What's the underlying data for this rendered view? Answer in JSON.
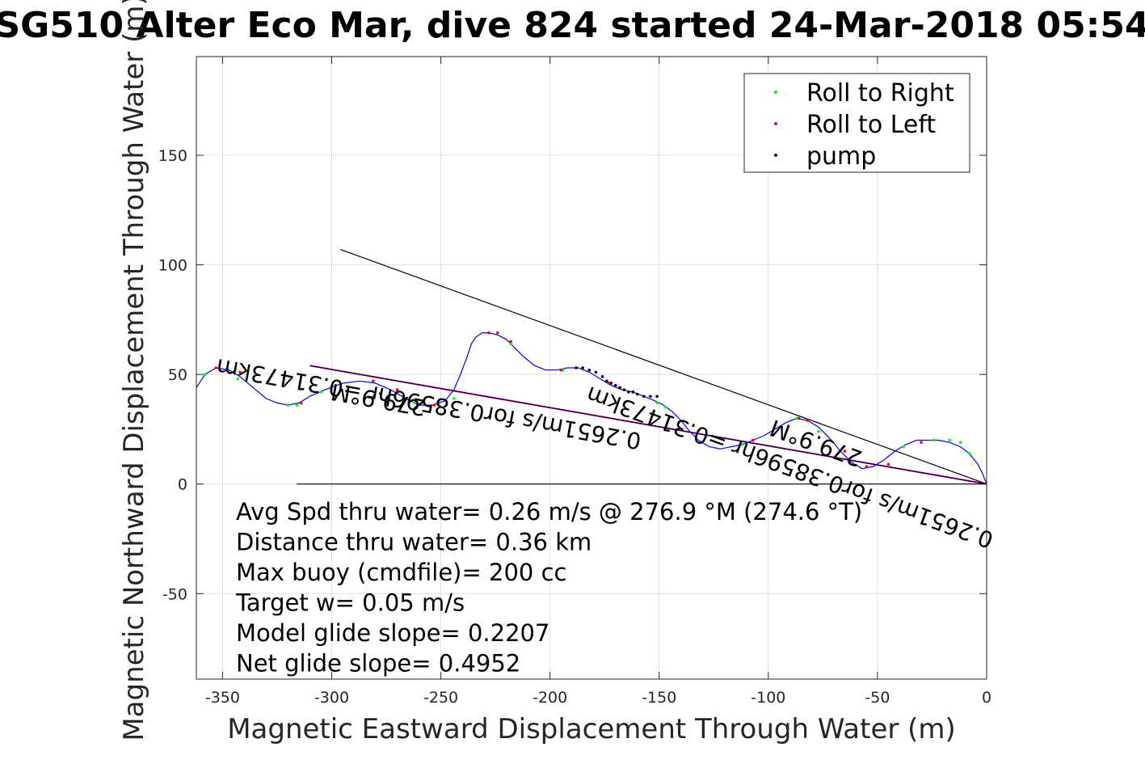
{
  "chart_data": {
    "type": "line",
    "title": "SG510 Alter Eco Mar, dive 824 started 24-Mar-2018 05:54",
    "xlabel": "Magnetic Eastward Displacement Through Water (m)",
    "ylabel": "Magnetic Northward Displacement Through Water (m)",
    "xlim": [
      -362,
      0
    ],
    "ylim": [
      -89,
      195
    ],
    "xticks": [
      -350,
      -300,
      -250,
      -200,
      -150,
      -100,
      -50,
      0
    ],
    "xtick_labels": [
      "-350",
      "-300",
      "-250",
      "-200",
      "-150",
      "-100",
      "-50",
      "0"
    ],
    "yticks": [
      -50,
      0,
      50,
      100,
      150
    ],
    "ytick_labels": [
      "-50",
      "0",
      "50",
      "100",
      "150"
    ],
    "grid": true,
    "legend_position": "top-right",
    "legend": [
      {
        "label": "Roll to Right",
        "color": "#00ff00"
      },
      {
        "label": "Roll to Left",
        "color": "#ff0000"
      },
      {
        "label": "pump",
        "color": "#000000"
      }
    ],
    "colors": {
      "track": "#0000ff",
      "mean_line": "#ff00ff",
      "reference_lines": "#000000"
    },
    "track": {
      "x": [
        -362,
        -358,
        -353,
        -347,
        -342,
        -336,
        -330,
        -325,
        -320,
        -315,
        -310,
        -303,
        -295,
        -287,
        -280,
        -273,
        -266,
        -260,
        -254,
        -248,
        -244,
        -241,
        -238,
        -236,
        -234,
        -231,
        -228,
        -224,
        -220,
        -216,
        -212,
        -207,
        -202,
        -197,
        -192,
        -187,
        -182,
        -177,
        -172,
        -167,
        -162,
        -157,
        -152,
        -148,
        -144,
        -140,
        -136,
        -132,
        -127,
        -122,
        -117,
        -112,
        -107,
        -102,
        -97,
        -92,
        -87,
        -82,
        -77,
        -72,
        -67,
        -62,
        -57,
        -52,
        -47,
        -42,
        -37,
        -32,
        -27,
        -22,
        -17,
        -12,
        -8,
        -4,
        -2,
        0
      ],
      "y": [
        44,
        50,
        53,
        52,
        49,
        44,
        39,
        37,
        36,
        37,
        40,
        43,
        46,
        47,
        46,
        43,
        39,
        36,
        36,
        38,
        43,
        50,
        58,
        64,
        67,
        69,
        69,
        68,
        66,
        62,
        58,
        54,
        52,
        52,
        53,
        53,
        51,
        48,
        45,
        43,
        42,
        40,
        38,
        36,
        33,
        29,
        24,
        20,
        17,
        16,
        17,
        18,
        20,
        22,
        25,
        28,
        30,
        29,
        26,
        21,
        15,
        10,
        7,
        8,
        11,
        15,
        18,
        20,
        20,
        20,
        19,
        17,
        14,
        9,
        5,
        0
      ]
    },
    "roll_right": {
      "x": [
        -358,
        -343,
        -320,
        -316,
        -305,
        -262,
        -251,
        -244,
        -218,
        -194,
        -188,
        -151,
        -147,
        -112,
        -87,
        -77,
        -38,
        -24,
        -17,
        -12,
        -8
      ],
      "y": [
        50,
        48,
        36,
        36,
        42,
        37,
        36,
        39,
        64,
        52,
        53,
        37,
        35,
        18,
        30,
        24,
        17,
        20,
        20,
        19,
        14
      ]
    },
    "roll_left": {
      "x": [
        -353,
        -348,
        -342,
        -314,
        -281,
        -270,
        -253,
        -228,
        -224,
        -218,
        -195,
        -173,
        -107,
        -86,
        -82,
        -65,
        -55,
        -45,
        -30
      ],
      "y": [
        53,
        52,
        51,
        37,
        47,
        43,
        36,
        69,
        69,
        65,
        52,
        46,
        20,
        30,
        29,
        15,
        8,
        9,
        19
      ]
    },
    "pump": {
      "x": [
        -188,
        -185,
        -182,
        -179,
        -176,
        -174,
        -172,
        -170,
        -168,
        -166,
        -164,
        -162,
        -160,
        -157,
        -154,
        -151
      ],
      "y": [
        53,
        53,
        52,
        51,
        49,
        47,
        46,
        45,
        44,
        43,
        42,
        42,
        41,
        40,
        40,
        40
      ]
    },
    "lines": [
      {
        "name": "net",
        "color": "#ff00ff",
        "x": [
          -310,
          0
        ],
        "y": [
          54,
          0
        ]
      },
      {
        "name": "net_ref",
        "color": "#000000",
        "x": [
          -310,
          0
        ],
        "y": [
          54,
          0
        ]
      },
      {
        "name": "avg",
        "color": "#000000",
        "x": [
          -296,
          0
        ],
        "y": [
          107,
          0
        ]
      },
      {
        "name": "zero",
        "color": "#000000",
        "x": [
          -316,
          0
        ],
        "y": [
          0,
          0
        ]
      }
    ],
    "annotations": [
      {
        "text": "279.9°M",
        "x": -278,
        "y": 42,
        "angle": 190
      },
      {
        "text": "0.2651m/s for0.38596hr =0.31473km",
        "x": -255,
        "y": 40,
        "angle": 190
      },
      {
        "text": "279.9°M",
        "x": -77,
        "y": 22,
        "angle": 200
      },
      {
        "text": "0.2651m/s for0.38596hr =0.31473km",
        "x": -89,
        "y": 11,
        "angle": 200
      }
    ],
    "info": [
      "Avg Spd thru water=  0.26 m/s @ 276.9 °M (274.6 °T)",
      "Distance thru water=  0.36 km",
      "Max buoy (cmdfile)= 200 cc",
      "Target w= 0.05 m/s",
      "Model glide slope= 0.2207",
      "Net glide slope= 0.4952"
    ]
  }
}
